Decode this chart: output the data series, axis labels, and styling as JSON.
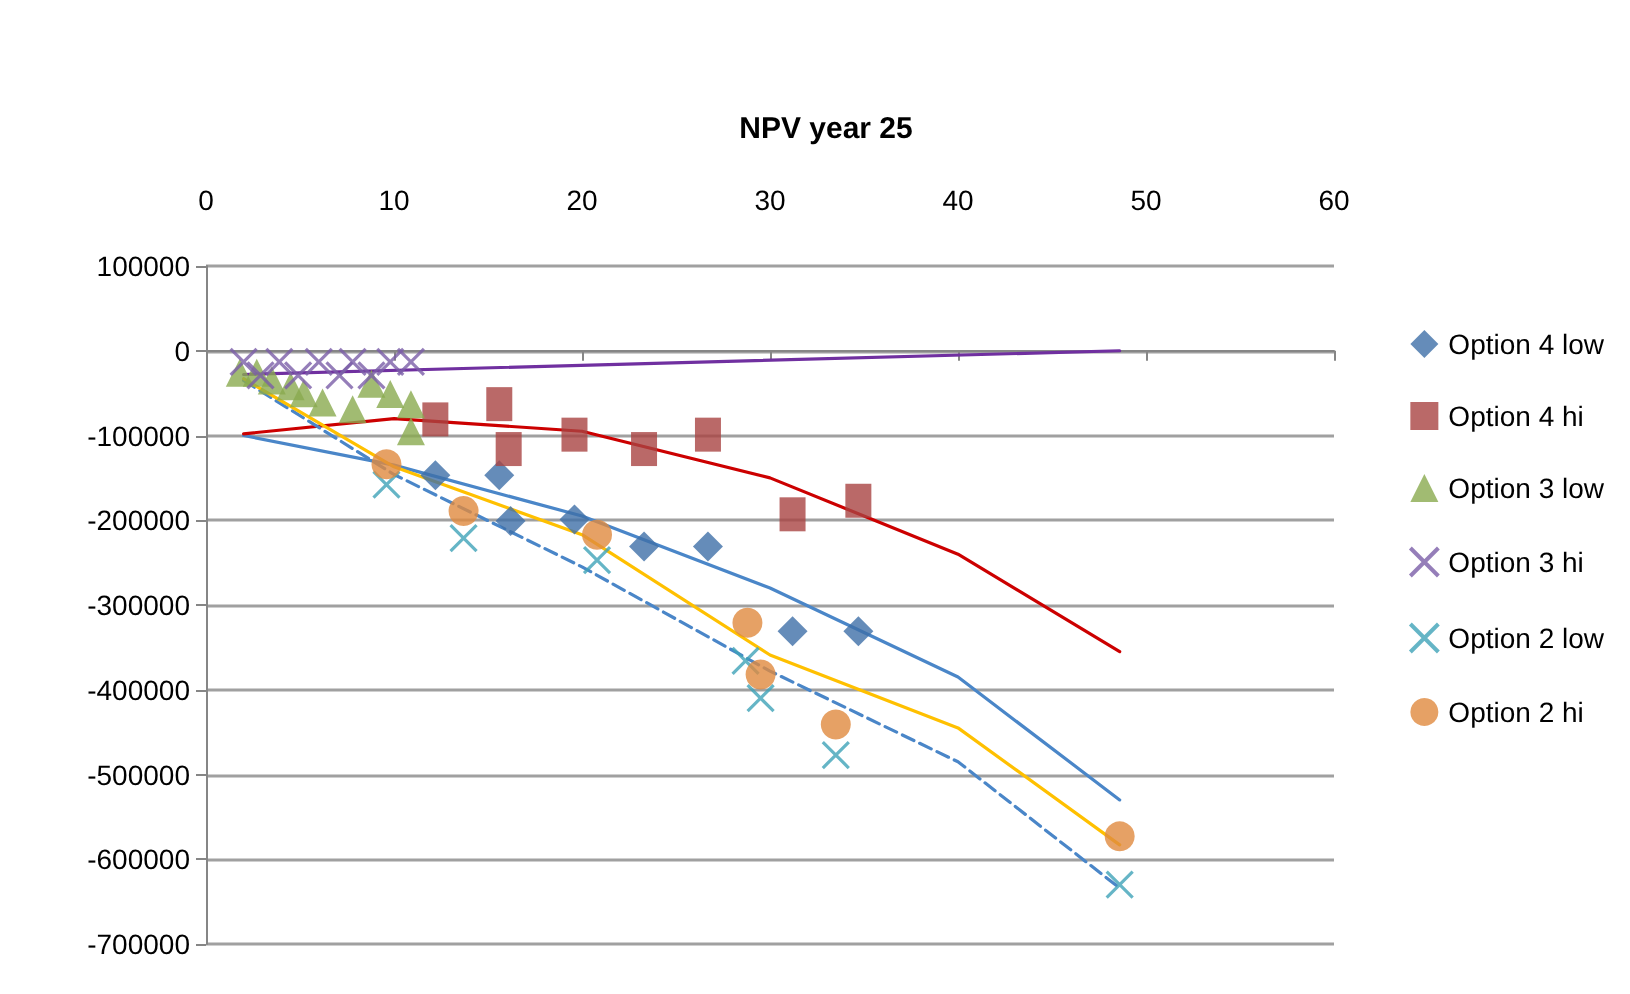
{
  "chart_data": {
    "type": "scatter",
    "title": "NPV year 25",
    "xlim": [
      0,
      60
    ],
    "xticks": [
      0,
      10,
      20,
      30,
      40,
      50,
      60
    ],
    "ylim": [
      -700000,
      100000
    ],
    "yticks": [
      -700000,
      -600000,
      -500000,
      -400000,
      -300000,
      -200000,
      -100000,
      0,
      100000
    ],
    "grid": "y",
    "legend": "right",
    "series": [
      {
        "name": "Option 4 low",
        "color": "#3f6fa8",
        "marker": "diamond",
        "x": [
          12.2,
          15.6,
          16.2,
          19.6,
          23.3,
          26.7,
          31.2,
          34.7
        ],
        "values": [
          -147000,
          -147000,
          -201000,
          -199000,
          -231000,
          -231000,
          -331000,
          -331000
        ]
      },
      {
        "name": "Option 4 hi",
        "color": "#a94442",
        "marker": "square",
        "x": [
          12.2,
          15.6,
          16.1,
          19.6,
          23.3,
          26.7,
          31.2,
          34.7
        ],
        "values": [
          -81000,
          -63000,
          -116000,
          -99000,
          -116000,
          -99000,
          -193000,
          -177000
        ]
      },
      {
        "name": "Option 3 low",
        "color": "#8aaa4f",
        "marker": "triangle",
        "x": [
          1.8,
          2.7,
          3.5,
          4.5,
          5.2,
          6.2,
          7.8,
          8.8,
          9.8,
          10.9,
          10.9
        ],
        "values": [
          -26000,
          -26000,
          -35000,
          -42000,
          -50000,
          -61000,
          -69000,
          -39000,
          -51000,
          -63000,
          -95000
        ]
      },
      {
        "name": "Option 3 hi",
        "color": "#7b5ea7",
        "marker": "cross",
        "x": [
          2.0,
          2.9,
          3.9,
          4.9,
          6.0,
          7.1,
          7.8,
          8.8,
          9.8,
          10.9
        ],
        "values": [
          -13000,
          -29000,
          -13000,
          -29000,
          -13000,
          -29000,
          -13000,
          -29000,
          -13000,
          -13000
        ]
      },
      {
        "name": "Option 2 low",
        "color": "#3ea3b8",
        "marker": "cross",
        "x": [
          9.6,
          13.7,
          20.8,
          28.7,
          29.5,
          33.5,
          48.6
        ],
        "values": [
          -158000,
          -221000,
          -247000,
          -366000,
          -410000,
          -477000,
          -630000
        ]
      },
      {
        "name": "Option 2 hi",
        "color": "#e08a3e",
        "marker": "circle",
        "x": [
          9.6,
          13.7,
          20.8,
          28.8,
          29.5,
          33.5,
          48.6
        ],
        "values": [
          -134000,
          -189000,
          -217000,
          -321000,
          -382000,
          -441000,
          -573000
        ]
      },
      {
        "type": "line",
        "color": "#4a86c8",
        "marker": "none",
        "line_style": "solid",
        "x": [
          2,
          10,
          20,
          30,
          40,
          48.6
        ],
        "values": [
          -100000,
          -135000,
          -195000,
          -280000,
          -385000,
          -530000
        ]
      },
      {
        "type": "line",
        "color": "#cc0000",
        "marker": "none",
        "line_style": "solid",
        "x": [
          2,
          10,
          20,
          30,
          40,
          48.6
        ],
        "values": [
          -98000,
          -80000,
          -95000,
          -150000,
          -240000,
          -355000
        ]
      },
      {
        "type": "line",
        "color": "#7030a0",
        "marker": "none",
        "line_style": "solid",
        "x": [
          2,
          48.6
        ],
        "values": [
          -28000,
          0
        ]
      },
      {
        "type": "line",
        "color": "#4a86c8",
        "marker": "none",
        "line_style": "dashed",
        "x": [
          2,
          10,
          20,
          30,
          40,
          48.6
        ],
        "values": [
          -35000,
          -146000,
          -255000,
          -378000,
          -485000,
          -634000
        ]
      },
      {
        "type": "line",
        "color": "#ffc000",
        "marker": "none",
        "line_style": "solid",
        "x": [
          2,
          10,
          20,
          30,
          40,
          48.6
        ],
        "values": [
          -33000,
          -137000,
          -217000,
          -359000,
          -445000,
          -583000
        ]
      }
    ]
  }
}
